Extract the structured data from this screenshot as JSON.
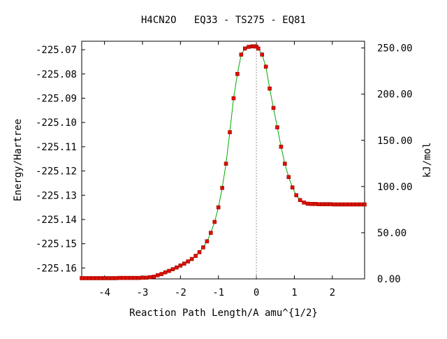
{
  "chart_data": {
    "type": "scatter",
    "title": "H4CN2O   EQ33 - TS275 - EQ81",
    "xlabel": "Reaction Path Length/A amu^{1/2}",
    "ylabel": "Energy/Hartree",
    "y2label": "kJ/mol",
    "xlim": [
      -4.6,
      2.85
    ],
    "ylim": [
      -225.1645,
      -225.0665
    ],
    "y2lim": [
      0,
      257.3
    ],
    "x_ticks": [
      "-4",
      "-3",
      "-2",
      "-1",
      "0",
      "1",
      "2"
    ],
    "x_tick_values": [
      -4,
      -3,
      -2,
      -1,
      0,
      1,
      2
    ],
    "y_ticks": [
      "-225.07",
      "-225.08",
      "-225.09",
      "-225.10",
      "-225.11",
      "-225.12",
      "-225.13",
      "-225.14",
      "-225.15",
      "-225.16"
    ],
    "y_tick_values": [
      -225.07,
      -225.08,
      -225.09,
      -225.1,
      -225.11,
      -225.12,
      -225.13,
      -225.14,
      -225.15,
      -225.16
    ],
    "y2_ticks": [
      "250.00",
      "200.00",
      "150.00",
      "100.00",
      "50.00",
      "0.00"
    ],
    "y2_tick_values": [
      250,
      200,
      150,
      100,
      50,
      0
    ],
    "ts_x": 0.0,
    "colors": {
      "curve": "#00aa00",
      "marker": "#dd1100",
      "marker_edge": "#990000",
      "ts_line": "#999999"
    },
    "series": [
      {
        "x": [
          -4.6,
          -4.5,
          -4.4,
          -4.3,
          -4.2,
          -4.1,
          -4.0,
          -3.9,
          -3.8,
          -3.7,
          -3.6,
          -3.5,
          -3.4,
          -3.3,
          -3.2,
          -3.1,
          -3.0,
          -2.9,
          -2.8,
          -2.7,
          -2.6,
          -2.5,
          -2.4,
          -2.3,
          -2.2,
          -2.1,
          -2.0,
          -1.9,
          -1.8,
          -1.7,
          -1.6,
          -1.5,
          -1.4,
          -1.3,
          -1.2,
          -1.1,
          -1.0,
          -0.9,
          -0.8,
          -0.7,
          -0.6,
          -0.5,
          -0.4,
          -0.3,
          -0.2,
          -0.1,
          -0.05,
          0.0,
          0.05,
          0.15,
          0.25,
          0.35,
          0.45,
          0.55,
          0.65,
          0.75,
          0.85,
          0.95,
          1.05,
          1.15,
          1.25,
          1.35,
          1.45,
          1.55,
          1.65,
          1.75,
          1.85,
          1.95,
          2.05,
          2.15,
          2.25,
          2.35,
          2.45,
          2.55,
          2.65,
          2.75,
          2.85
        ],
        "y": [
          -225.1642,
          -225.1642,
          -225.1642,
          -225.1642,
          -225.1642,
          -225.1642,
          -225.1642,
          -225.1642,
          -225.1642,
          -225.1642,
          -225.1641,
          -225.1641,
          -225.1641,
          -225.1641,
          -225.1641,
          -225.1641,
          -225.164,
          -225.164,
          -225.1638,
          -225.1636,
          -225.163,
          -225.1625,
          -225.1618,
          -225.1612,
          -225.1605,
          -225.1598,
          -225.159,
          -225.1582,
          -225.1573,
          -225.1563,
          -225.155,
          -225.1535,
          -225.1515,
          -225.149,
          -225.1455,
          -225.141,
          -225.135,
          -225.127,
          -225.117,
          -225.104,
          -225.09,
          -225.08,
          -225.072,
          -225.0695,
          -225.0688,
          -225.0686,
          -225.0686,
          -225.0687,
          -225.0695,
          -225.072,
          -225.077,
          -225.086,
          -225.094,
          -225.102,
          -225.11,
          -225.117,
          -225.1225,
          -225.1268,
          -225.13,
          -225.132,
          -225.133,
          -225.1335,
          -225.1336,
          -225.1336,
          -225.1337,
          -225.1337,
          -225.1337,
          -225.1337,
          -225.1338,
          -225.1338,
          -225.1338,
          -225.1338,
          -225.1338,
          -225.1338,
          -225.1338,
          -225.1338,
          -225.1338
        ]
      }
    ]
  }
}
